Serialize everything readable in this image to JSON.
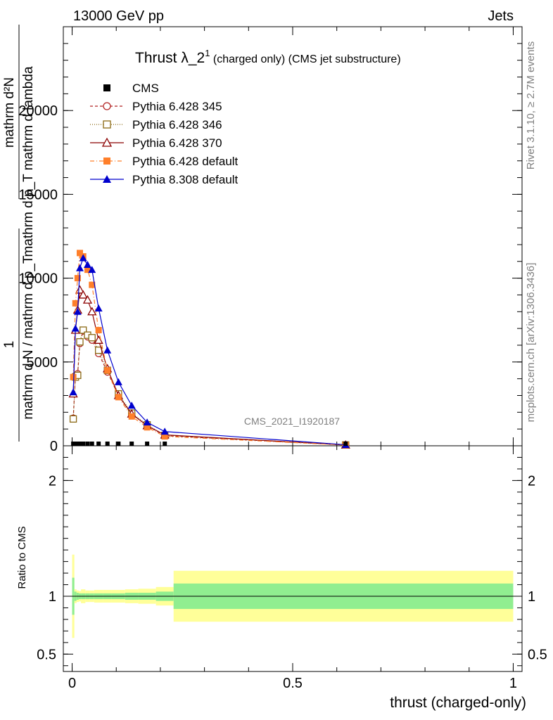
{
  "header": {
    "left": "13000 GeV pp",
    "right": "Jets"
  },
  "title": {
    "main": "Thrust λ_2",
    "sup": "1",
    "sub": " (charged only) (CMS jet substructure)"
  },
  "side_labels": {
    "rivet": "Rivet 3.1.10, ≥ 2.7M events",
    "mcplots": "mcplots.cern.ch [arXiv:1306.3436]"
  },
  "watermark": "CMS_2021_I1920187",
  "top_ylabel": {
    "numerator": "mathrm d²N",
    "denominator": "mathrm d p_T mathrm d lambda",
    "prefix_num": "1",
    "prefix_den": "mathrm d N / mathrm d p_T"
  },
  "ratio_ylabel": "Ratio to CMS",
  "xlabel": "thrust (charged-only)",
  "legend": [
    {
      "name": "CMS",
      "color": "#000000",
      "marker": "square",
      "dash": ""
    },
    {
      "name": "Pythia 6.428 345",
      "color": "#b22222",
      "marker": "circle-open",
      "dash": "4,3"
    },
    {
      "name": "Pythia 6.428 346",
      "color": "#8b6914",
      "marker": "square-open",
      "dash": "1,2"
    },
    {
      "name": "Pythia 6.428 370",
      "color": "#8b0000",
      "marker": "triangle-open",
      "dash": ""
    },
    {
      "name": "Pythia 6.428 default",
      "color": "#ff7f2a",
      "marker": "square",
      "dash": "6,3,1,3"
    },
    {
      "name": "Pythia 8.308 default",
      "color": "#0000cd",
      "marker": "triangle",
      "dash": ""
    }
  ],
  "chart_data": {
    "type": "line",
    "xlim": [
      -0.02,
      1.02
    ],
    "ylim": [
      0,
      25000
    ],
    "ratio_ylim": [
      0.35,
      2.3
    ],
    "x_ticks": [
      {
        "v": 0,
        "label": "0"
      },
      {
        "v": 0.5,
        "label": "0.5"
      },
      {
        "v": 1,
        "label": "1"
      }
    ],
    "y_ticks": [
      {
        "v": 0,
        "label": "0"
      },
      {
        "v": 5000,
        "label": "5000"
      },
      {
        "v": 10000,
        "label": "10000"
      },
      {
        "v": 15000,
        "label": "15000"
      },
      {
        "v": 20000,
        "label": "20000"
      }
    ],
    "ratio_ticks": [
      {
        "v": 0.5,
        "label": "0.5"
      },
      {
        "v": 1,
        "label": "1"
      },
      {
        "v": 2,
        "label": "2"
      }
    ],
    "cms_x": [
      0.0025,
      0.0075,
      0.0125,
      0.0175,
      0.025,
      0.035,
      0.045,
      0.06,
      0.08,
      0.105,
      0.135,
      0.17,
      0.21,
      0.62
    ],
    "series": [
      {
        "name": "Pythia 6.428 345",
        "x": [
          0.0025,
          0.0075,
          0.0125,
          0.0175,
          0.025,
          0.035,
          0.045,
          0.06,
          0.08,
          0.105,
          0.135,
          0.17,
          0.21,
          0.62
        ],
        "y": [
          1650,
          4200,
          4300,
          6100,
          6850,
          6500,
          6300,
          5500,
          4400,
          3000,
          1900,
          1200,
          600,
          50
        ]
      },
      {
        "name": "Pythia 6.428 346",
        "x": [
          0.0025,
          0.0075,
          0.0125,
          0.0175,
          0.025,
          0.035,
          0.045,
          0.06,
          0.08,
          0.105,
          0.135,
          0.17,
          0.21,
          0.62
        ],
        "y": [
          1600,
          4100,
          4200,
          6200,
          6900,
          6600,
          6450,
          5700,
          4500,
          3100,
          1950,
          1250,
          620,
          50
        ]
      },
      {
        "name": "Pythia 6.428 370",
        "x": [
          0.0025,
          0.0075,
          0.0125,
          0.0175,
          0.025,
          0.035,
          0.045,
          0.06,
          0.08,
          0.105,
          0.135,
          0.17,
          0.21,
          0.62
        ],
        "y": [
          3100,
          6900,
          8100,
          9300,
          9000,
          8700,
          8000,
          6300,
          4600,
          3000,
          1900,
          1200,
          650,
          50
        ]
      },
      {
        "name": "Pythia 6.428 default",
        "x": [
          0.0025,
          0.0075,
          0.0125,
          0.0175,
          0.025,
          0.035,
          0.045,
          0.06,
          0.08,
          0.105,
          0.135,
          0.17,
          0.21,
          0.62
        ],
        "y": [
          4100,
          8500,
          10000,
          11500,
          11300,
          10500,
          9600,
          6900,
          4500,
          2900,
          1750,
          1100,
          560,
          40
        ]
      },
      {
        "name": "Pythia 8.308 default",
        "x": [
          0.0025,
          0.0075,
          0.0125,
          0.0175,
          0.025,
          0.035,
          0.045,
          0.06,
          0.08,
          0.105,
          0.135,
          0.17,
          0.21,
          0.62
        ],
        "y": [
          3200,
          7000,
          8000,
          10600,
          11200,
          10800,
          10500,
          8200,
          5700,
          3800,
          2400,
          1400,
          850,
          60
        ]
      }
    ],
    "ratio_bands": {
      "edges": [
        0.0,
        0.005,
        0.01,
        0.015,
        0.02,
        0.03,
        0.04,
        0.05,
        0.07,
        0.09,
        0.12,
        0.15,
        0.19,
        0.23,
        1.0
      ],
      "inner": [
        0.16,
        0.04,
        0.03,
        0.025,
        0.025,
        0.025,
        0.025,
        0.025,
        0.025,
        0.025,
        0.03,
        0.03,
        0.04,
        0.11
      ],
      "outer": [
        0.36,
        0.06,
        0.05,
        0.045,
        0.06,
        0.05,
        0.05,
        0.055,
        0.055,
        0.055,
        0.06,
        0.065,
        0.08,
        0.22
      ]
    }
  }
}
